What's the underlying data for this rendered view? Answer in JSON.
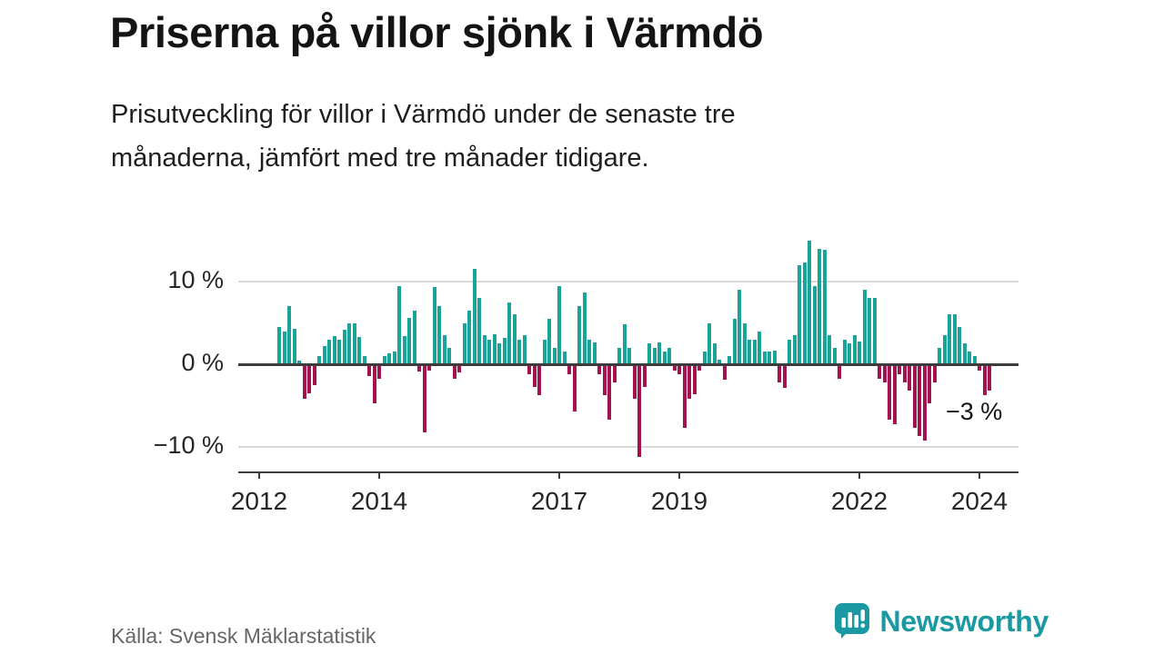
{
  "header": {
    "title": "Priserna på villor sjönk i Värmdö",
    "subtitle_lines": [
      "Prisutveckling för villor i Värmdö under de senaste tre",
      "månaderna, jämfört med tre månader tidigare."
    ]
  },
  "chart_data": {
    "type": "bar",
    "title": "Priserna på villor sjönk i Värmdö",
    "subtitle": "Prisutveckling för villor i Värmdö under de senaste tre månaderna, jämfört med tre månader tidigare.",
    "unit": "%",
    "frequency": "monthly",
    "start": "2012-05",
    "values": [
      4.5,
      4.0,
      7.0,
      4.3,
      0.4,
      -4.0,
      -3.3,
      -2.3,
      1.0,
      2.2,
      3.0,
      3.4,
      3.0,
      4.2,
      5.0,
      5.0,
      3.3,
      1.0,
      -1.2,
      -4.5,
      -1.5,
      1.0,
      1.3,
      1.5,
      9.4,
      3.4,
      5.6,
      6.5,
      -0.7,
      -8.0,
      -0.6,
      9.3,
      7.0,
      3.5,
      2.0,
      -1.5,
      -0.8,
      5.0,
      6.5,
      11.5,
      8.0,
      3.5,
      3.0,
      3.6,
      2.5,
      3.2,
      7.5,
      6.0,
      3.0,
      3.5,
      -1.0,
      -2.5,
      -3.5,
      3.0,
      5.5,
      2.0,
      9.5,
      1.5,
      -1.0,
      -5.5,
      7.0,
      8.7,
      3.0,
      2.6,
      -1.0,
      -3.5,
      -6.5,
      -2.0,
      2.0,
      4.8,
      2.0,
      -4.0,
      -11.0,
      -2.5,
      2.5,
      2.0,
      2.6,
      1.5,
      2.0,
      -0.6,
      -1.0,
      -7.5,
      -4.0,
      -3.4,
      -0.6,
      1.5,
      5.0,
      2.5,
      0.6,
      -1.6,
      1.0,
      5.5,
      9.0,
      5.0,
      3.0,
      3.0,
      4.0,
      1.5,
      1.5,
      1.6,
      -2.0,
      -2.6,
      3.0,
      3.5,
      12.0,
      12.3,
      15.0,
      9.5,
      14.0,
      13.8,
      3.5,
      2.0,
      -1.5,
      3.0,
      2.5,
      3.5,
      2.8,
      9.0,
      8.0,
      8.0,
      -1.5,
      -2.0,
      -6.5,
      -7.0,
      -1.0,
      -2.0,
      -3.0,
      -7.5,
      -8.5,
      -9.0,
      -4.5,
      -2.0,
      2.0,
      3.5,
      6.0,
      6.0,
      4.5,
      2.5,
      1.5,
      1.0,
      -0.5,
      -3.5,
      -3.0
    ],
    "yticks": [
      {
        "value": 10,
        "label": "10 %"
      },
      {
        "value": 0,
        "label": "0 %"
      },
      {
        "value": -10,
        "label": "−10 %"
      }
    ],
    "xticks": [
      {
        "year": 2012,
        "label": "2012"
      },
      {
        "year": 2014,
        "label": "2014"
      },
      {
        "year": 2017,
        "label": "2017"
      },
      {
        "year": 2019,
        "label": "2019"
      },
      {
        "year": 2022,
        "label": "2022"
      },
      {
        "year": 2024,
        "label": "2024"
      }
    ],
    "ylim": [
      -12,
      16
    ],
    "grid": "horizontal",
    "legend": "none",
    "annotation": {
      "text": "−3 %",
      "value": -3
    },
    "colors": {
      "positive": "#1ba39a",
      "negative": "#a21450"
    }
  },
  "footer": {
    "source": "Källa: Svensk Mäklarstatistik"
  },
  "branding": {
    "name": "Newsworthy",
    "color": "#1a99a3",
    "icon": "bar-chart-speech-bubble-icon"
  }
}
